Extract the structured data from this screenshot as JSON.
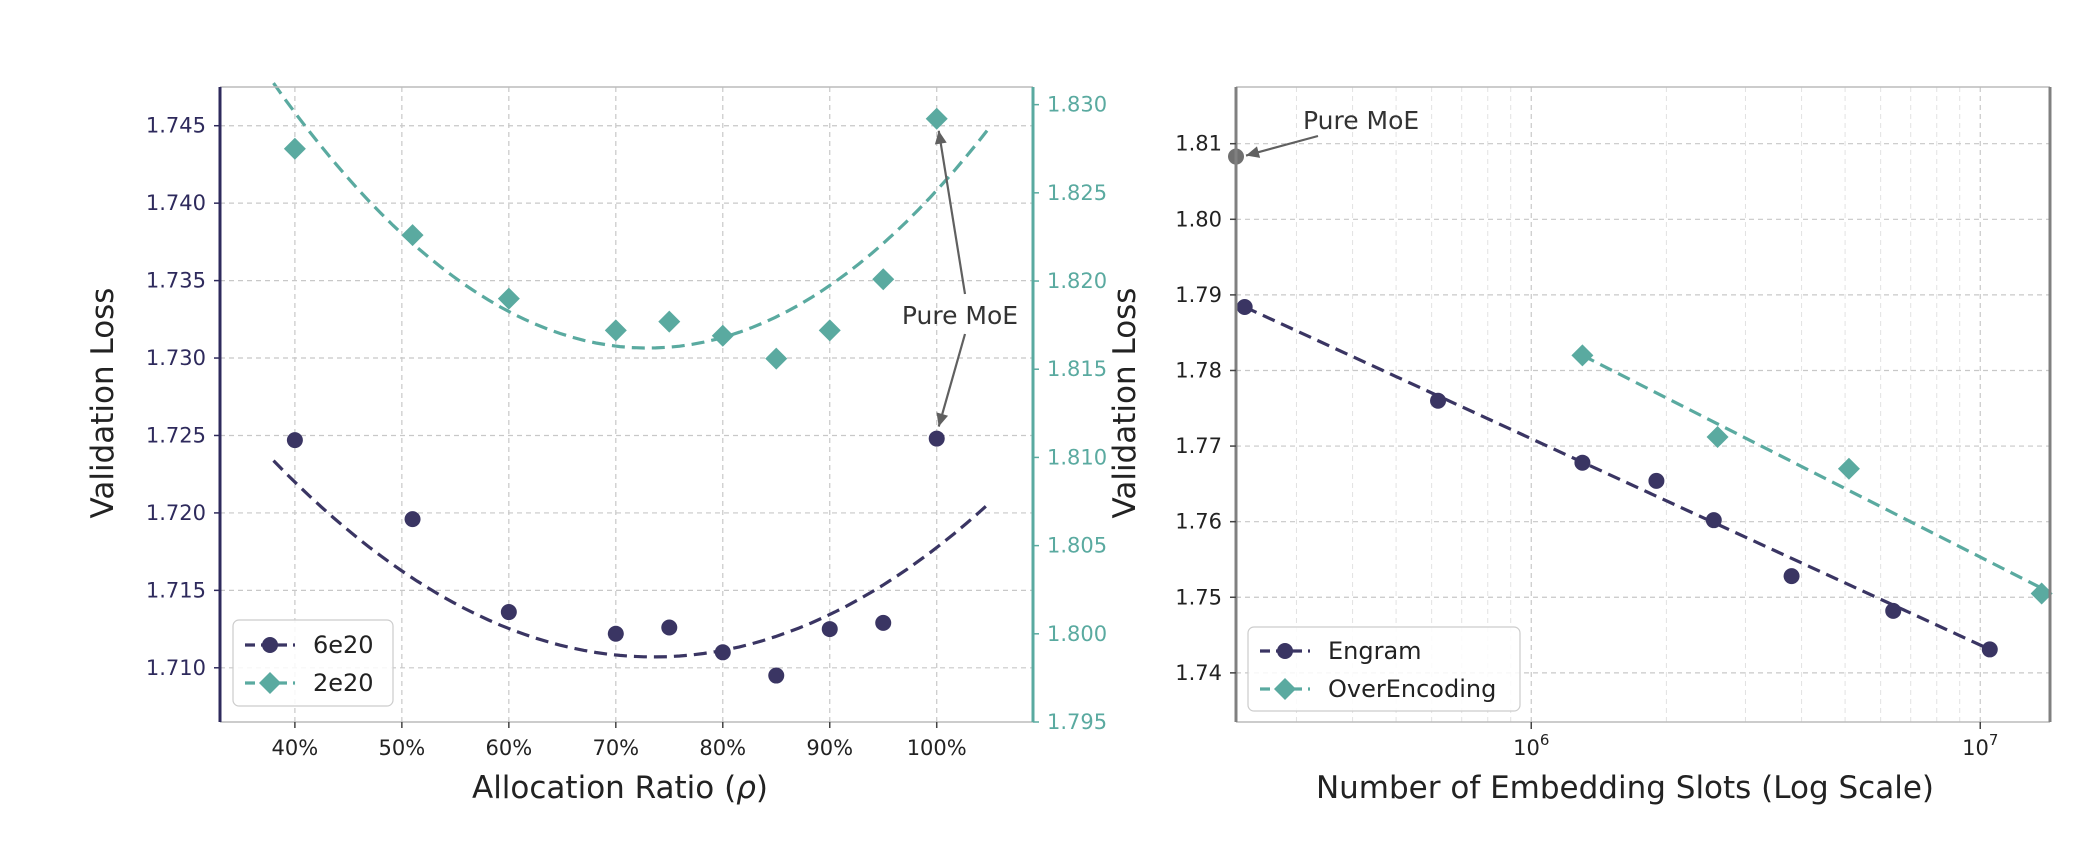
{
  "colors": {
    "series_dark": "#3a3563",
    "series_teal": "#5aaaa0",
    "annotation": "#606060",
    "grid": "#c8c8c8",
    "axis_left": "#2e2a5c",
    "axis_right_teal": "#5aaaa0",
    "axis_gray": "#808080"
  },
  "chart_data": [
    {
      "type": "scatter",
      "xlabel": "Allocation Ratio (ρ)",
      "ylabel": "Validation Loss",
      "xlim": [
        0.33,
        1.09
      ],
      "ylim": [
        1.7065,
        1.7475
      ],
      "y2lim": [
        1.795,
        1.831
      ],
      "x_ticks": [
        0.4,
        0.5,
        0.6,
        0.7,
        0.8,
        0.9,
        1.0
      ],
      "x_tick_labels": [
        "40%",
        "50%",
        "60%",
        "70%",
        "80%",
        "90%",
        "100%"
      ],
      "y_ticks": [
        1.71,
        1.715,
        1.72,
        1.725,
        1.73,
        1.735,
        1.74,
        1.745
      ],
      "y_tick_labels": [
        "1.710",
        "1.715",
        "1.720",
        "1.725",
        "1.730",
        "1.735",
        "1.740",
        "1.745"
      ],
      "y2_ticks": [
        1.795,
        1.8,
        1.805,
        1.81,
        1.815,
        1.82,
        1.825,
        1.83
      ],
      "y2_tick_labels": [
        "1.795",
        "1.800",
        "1.805",
        "1.810",
        "1.815",
        "1.820",
        "1.825",
        "1.830"
      ],
      "grid": true,
      "legend_position": "lower-left",
      "series": [
        {
          "name": "6e20",
          "axis": "left",
          "marker": "circle",
          "color": "#3a3563",
          "x": [
            0.4,
            0.51,
            0.6,
            0.7,
            0.75,
            0.8,
            0.85,
            0.9,
            0.95,
            1.0
          ],
          "y": [
            1.7247,
            1.7196,
            1.7136,
            1.7122,
            1.7126,
            1.711,
            1.7095,
            1.7125,
            1.7129,
            1.7248
          ],
          "fit": {
            "x0": 0.38,
            "x1": 1.05,
            "vertex_x": 0.735,
            "vertex_y": 1.7107,
            "a": 0.1006
          }
        },
        {
          "name": "2e20",
          "axis": "right",
          "marker": "diamond",
          "color": "#5aaaa0",
          "x": [
            0.4,
            0.51,
            0.6,
            0.7,
            0.75,
            0.8,
            0.85,
            0.9,
            0.95,
            1.0
          ],
          "y": [
            1.8275,
            1.8226,
            1.819,
            1.8172,
            1.8177,
            1.8169,
            1.8156,
            1.8172,
            1.8201,
            1.8292
          ],
          "fit": {
            "x0": 0.38,
            "x1": 1.05,
            "vertex_x": 0.73,
            "vertex_y": 1.8162,
            "a": 0.1226
          }
        }
      ],
      "annotations": [
        {
          "text": "Pure MoE"
        }
      ]
    },
    {
      "type": "scatter",
      "xscale": "log",
      "xlabel": "Number of Embedding Slots (Log Scale)",
      "ylabel": "Validation Loss",
      "xlim": [
        220000,
        14300000
      ],
      "ylim": [
        1.7335,
        1.8175
      ],
      "x_ticks": [
        1000000,
        10000000
      ],
      "x_tick_labels": [
        "10",
        "10"
      ],
      "x_tick_exponents": [
        "6",
        "7"
      ],
      "y_ticks": [
        1.74,
        1.75,
        1.76,
        1.77,
        1.78,
        1.79,
        1.8,
        1.81
      ],
      "y_tick_labels": [
        "1.74",
        "1.75",
        "1.76",
        "1.77",
        "1.78",
        "1.79",
        "1.80",
        "1.81"
      ],
      "grid": true,
      "legend_position": "lower-left",
      "series": [
        {
          "name": "Engram",
          "marker": "circle",
          "color": "#3a3563",
          "x": [
            230000,
            620000,
            1300000,
            1900000,
            2550000,
            3800000,
            6400000,
            10500000
          ],
          "y": [
            1.7884,
            1.776,
            1.7678,
            1.7654,
            1.7602,
            1.7528,
            1.7482,
            1.7431
          ],
          "fit": {
            "x": [
              230000,
              10500000
            ],
            "y": [
              1.7884,
              1.7431
            ]
          }
        },
        {
          "name": "OverEncoding",
          "marker": "diamond",
          "color": "#5aaaa0",
          "x": [
            1300000,
            2600000,
            5100000,
            13700000
          ],
          "y": [
            1.782,
            1.7712,
            1.767,
            1.7505
          ],
          "fit": {
            "x": [
              1300000,
              13700000
            ],
            "y": [
              1.782,
              1.7512
            ]
          }
        }
      ],
      "extra_points": [
        {
          "label": "Pure MoE",
          "x": 220000,
          "y": 1.8083,
          "color": "#707070"
        }
      ],
      "annotations": [
        {
          "text": "Pure MoE"
        }
      ]
    }
  ]
}
